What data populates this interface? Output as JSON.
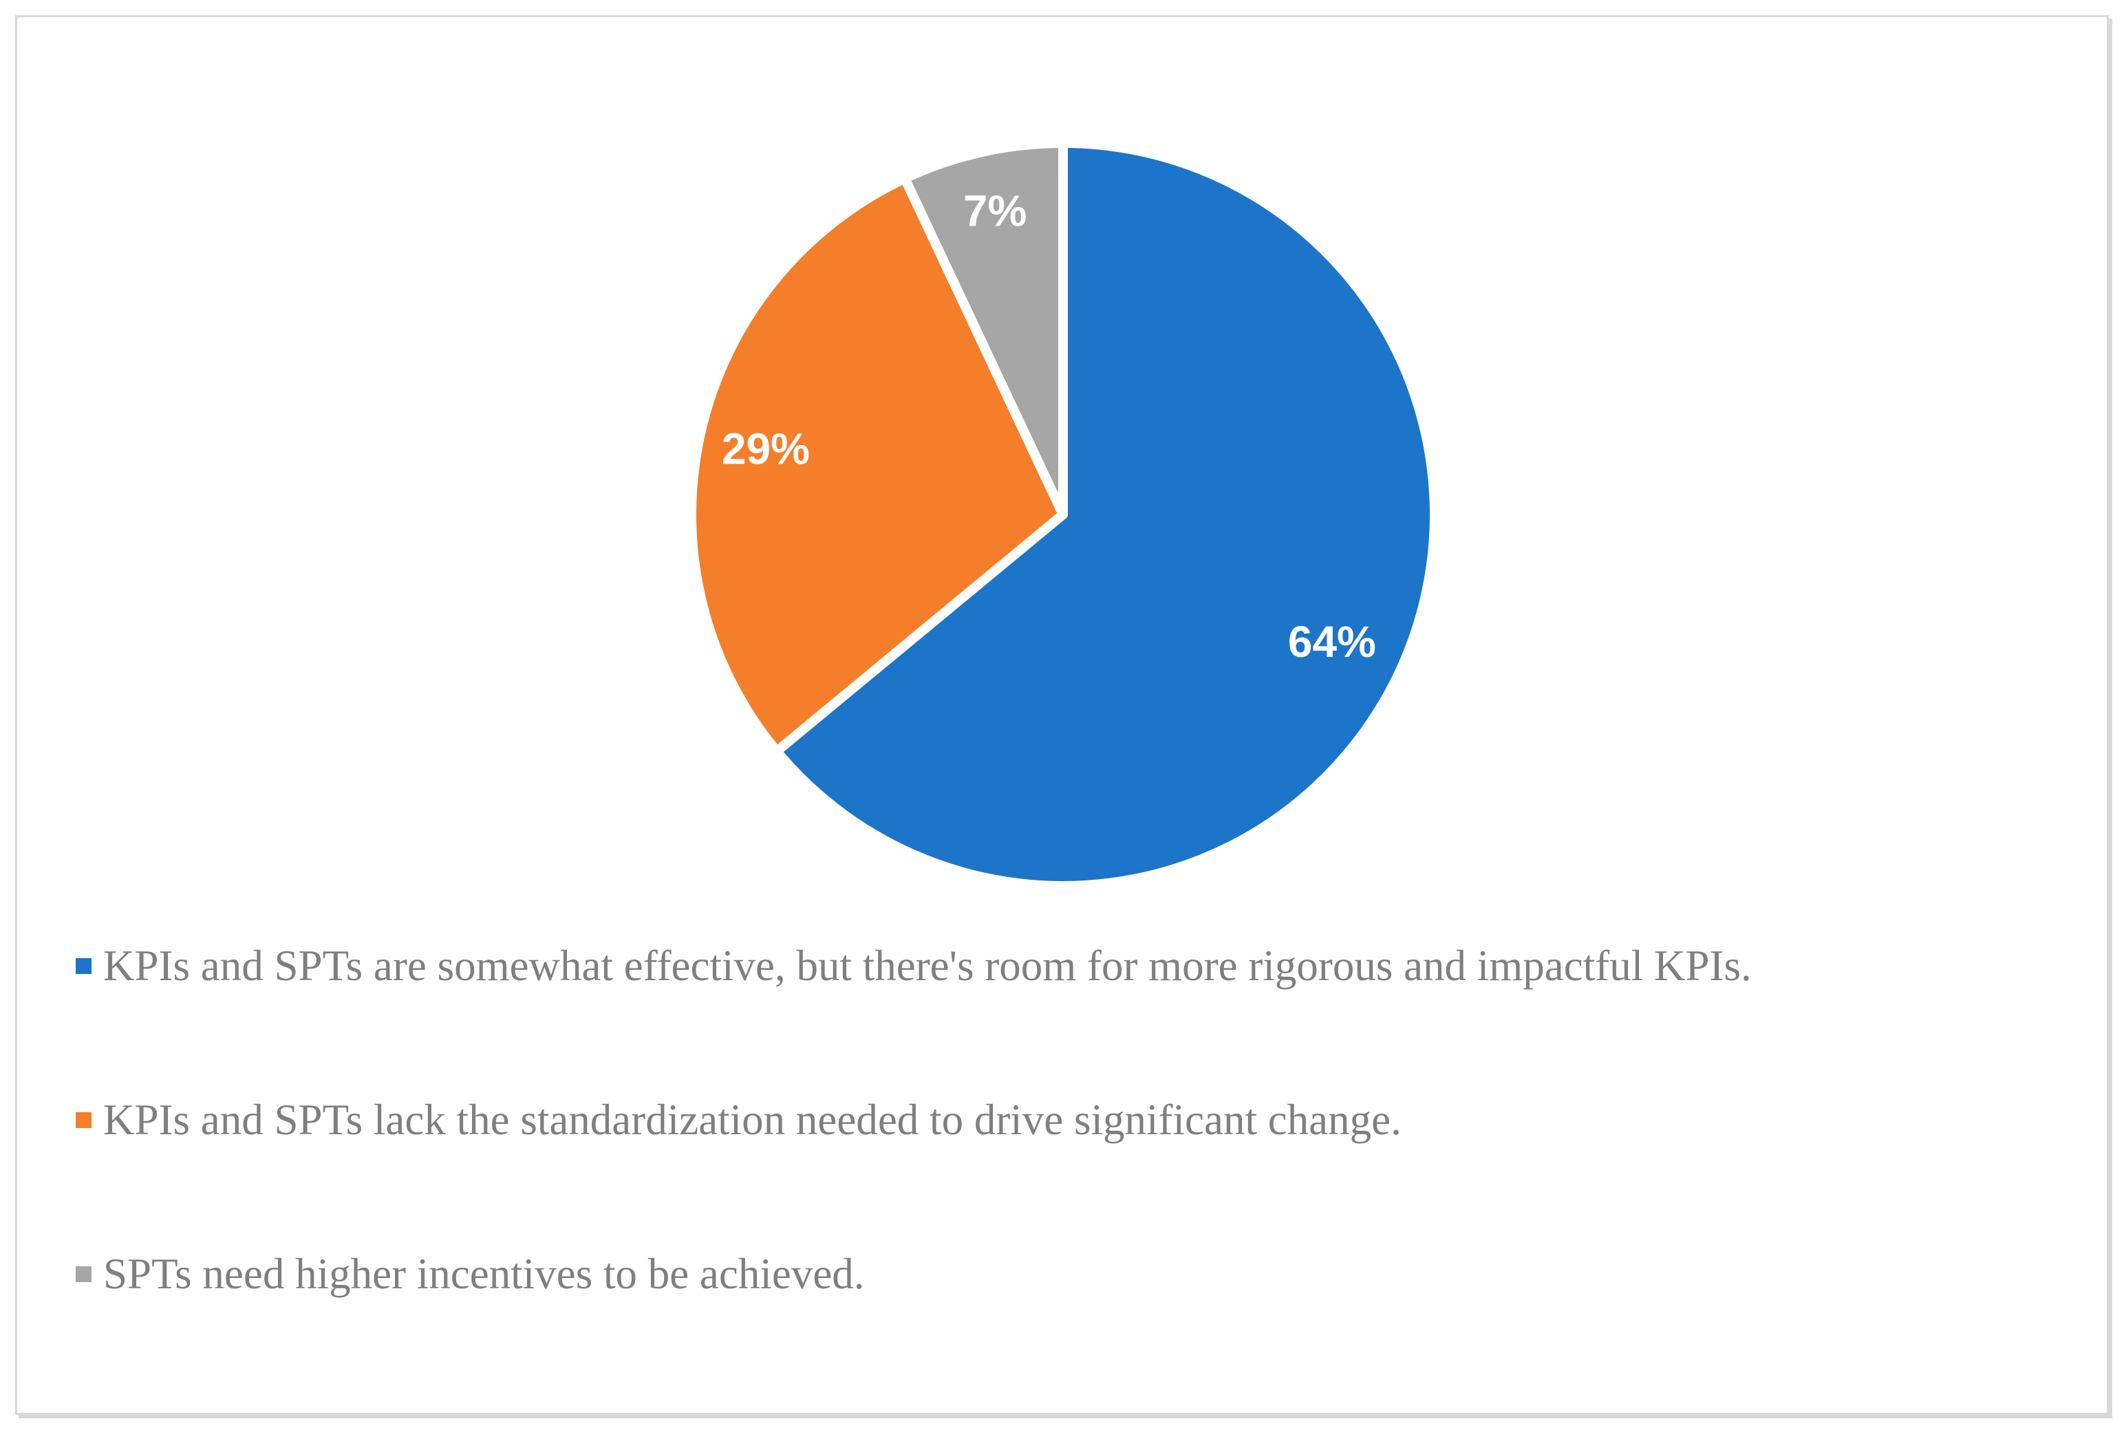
{
  "chart_data": {
    "type": "pie",
    "title": "",
    "direction": "clockwise",
    "start_angle_deg": 0,
    "data_labels": "percent",
    "legend_position": "bottom-left",
    "slices": [
      {
        "label": "KPIs and SPTs are somewhat effective, but there's room for more rigorous and impactful KPIs.",
        "value": 64,
        "display": "64%",
        "color": "#1C75C8"
      },
      {
        "label": "KPIs and SPTs lack the standardization needed to drive significant change.",
        "value": 29,
        "display": "29%",
        "color": "#F57E2A"
      },
      {
        "label": "SPTs need higher incentives to be achieved.",
        "value": 7,
        "display": "7%",
        "color": "#A6A6A6"
      }
    ]
  },
  "styles": {
    "data_label_color": "#FFFFFF",
    "slice_separator_color": "#FFFFFF",
    "legend_text_color": "#7F7F7F",
    "frame_border_color": "#D9D9D9",
    "background_color": "#FFFFFF"
  }
}
